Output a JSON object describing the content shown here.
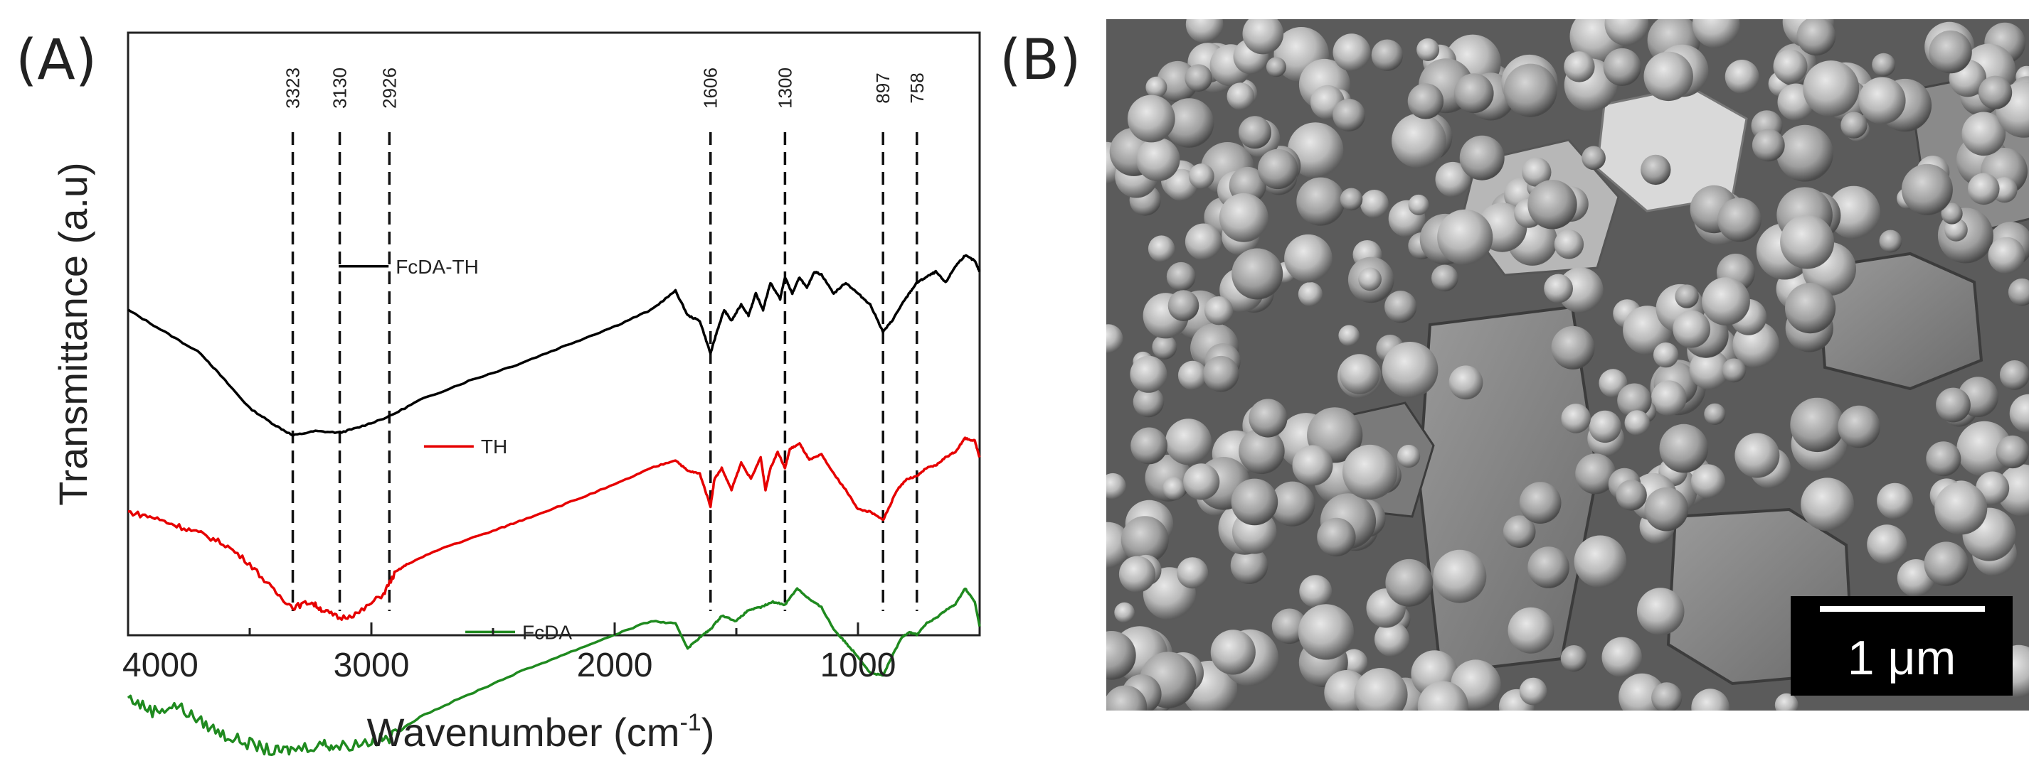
{
  "panels": {
    "a_label": "(A)",
    "b_label": "(B)"
  },
  "chart_data": {
    "type": "line",
    "xlabel": "Wavenumber (cm-1)",
    "xlabel_main": "Wavenumber (cm",
    "xlabel_sup": "-1",
    "xlabel_tail": ")",
    "ylabel": "Transmittance (a.u)",
    "xlim": [
      4000,
      500
    ],
    "x_ticks": [
      4000,
      3000,
      2000,
      1000
    ],
    "x_tick_labels": [
      "4000",
      "3000",
      "2000",
      "1000"
    ],
    "reversed_x": true,
    "y_units": "arbitrary",
    "ylim": [
      0,
      100
    ],
    "grid": false,
    "legend": "inline labels",
    "reference_lines": [
      {
        "x": 3323,
        "label": "3323"
      },
      {
        "x": 3130,
        "label": "3130"
      },
      {
        "x": 2926,
        "label": "2926"
      },
      {
        "x": 1606,
        "label": "1606"
      },
      {
        "x": 1300,
        "label": "1300"
      },
      {
        "x": 897,
        "label": "897"
      },
      {
        "x": 758,
        "label": "758"
      }
    ],
    "series": [
      {
        "name": "FcDA-TH",
        "color": "#000000",
        "label_x": 2900,
        "label_y": 93,
        "points": [
          [
            4000,
            85
          ],
          [
            3850,
            81
          ],
          [
            3700,
            77
          ],
          [
            3600,
            72
          ],
          [
            3500,
            67
          ],
          [
            3400,
            64
          ],
          [
            3323,
            62
          ],
          [
            3230,
            62.8
          ],
          [
            3130,
            62.5
          ],
          [
            3050,
            63.5
          ],
          [
            2926,
            65.5
          ],
          [
            2800,
            68.5
          ],
          [
            2600,
            72
          ],
          [
            2400,
            75
          ],
          [
            2200,
            78.5
          ],
          [
            2000,
            82
          ],
          [
            1850,
            85
          ],
          [
            1750,
            88.5
          ],
          [
            1700,
            84
          ],
          [
            1650,
            83
          ],
          [
            1606,
            77
          ],
          [
            1580,
            81
          ],
          [
            1550,
            85
          ],
          [
            1520,
            83
          ],
          [
            1480,
            86
          ],
          [
            1450,
            84
          ],
          [
            1420,
            88
          ],
          [
            1390,
            85
          ],
          [
            1360,
            90
          ],
          [
            1320,
            87
          ],
          [
            1300,
            91
          ],
          [
            1270,
            88
          ],
          [
            1240,
            91
          ],
          [
            1210,
            89
          ],
          [
            1180,
            92
          ],
          [
            1150,
            91.5
          ],
          [
            1100,
            88
          ],
          [
            1050,
            90
          ],
          [
            1000,
            88
          ],
          [
            950,
            86
          ],
          [
            897,
            81
          ],
          [
            860,
            83
          ],
          [
            820,
            86
          ],
          [
            790,
            88
          ],
          [
            758,
            90
          ],
          [
            720,
            91
          ],
          [
            680,
            92
          ],
          [
            640,
            90
          ],
          [
            600,
            93
          ],
          [
            560,
            95
          ],
          [
            520,
            94
          ],
          [
            500,
            92
          ]
        ]
      },
      {
        "name": "TH",
        "color": "#e60000",
        "label_x": 2550,
        "label_y": 60,
        "points": [
          [
            4000,
            48
          ],
          [
            3900,
            47
          ],
          [
            3800,
            45.5
          ],
          [
            3700,
            44
          ],
          [
            3600,
            42
          ],
          [
            3500,
            38.5
          ],
          [
            3400,
            33.5
          ],
          [
            3323,
            30.5
          ],
          [
            3250,
            31.5
          ],
          [
            3200,
            30
          ],
          [
            3130,
            28.5
          ],
          [
            3050,
            29.5
          ],
          [
            2950,
            33
          ],
          [
            2900,
            37
          ],
          [
            2850,
            38.5
          ],
          [
            2700,
            41.5
          ],
          [
            2500,
            44.5
          ],
          [
            2380,
            46.5
          ],
          [
            2200,
            49.5
          ],
          [
            2000,
            53
          ],
          [
            1850,
            56
          ],
          [
            1750,
            57.5
          ],
          [
            1700,
            55.5
          ],
          [
            1650,
            55
          ],
          [
            1606,
            49
          ],
          [
            1590,
            54
          ],
          [
            1560,
            56
          ],
          [
            1520,
            52
          ],
          [
            1480,
            57
          ],
          [
            1440,
            54
          ],
          [
            1400,
            58
          ],
          [
            1380,
            52
          ],
          [
            1360,
            56
          ],
          [
            1330,
            59
          ],
          [
            1300,
            56
          ],
          [
            1280,
            59.5
          ],
          [
            1240,
            60.5
          ],
          [
            1200,
            57.5
          ],
          [
            1150,
            58.5
          ],
          [
            1100,
            55
          ],
          [
            1050,
            52
          ],
          [
            1000,
            48.5
          ],
          [
            950,
            48
          ],
          [
            897,
            46.5
          ],
          [
            870,
            49
          ],
          [
            840,
            52
          ],
          [
            800,
            54
          ],
          [
            758,
            54.5
          ],
          [
            720,
            56
          ],
          [
            680,
            56.5
          ],
          [
            640,
            58
          ],
          [
            600,
            59
          ],
          [
            560,
            61.5
          ],
          [
            520,
            61
          ],
          [
            500,
            58
          ]
        ]
      },
      {
        "name": "FcDA",
        "color": "#1f8a1f",
        "label_x": 2380,
        "label_y": 26,
        "points": [
          [
            4000,
            14
          ],
          [
            3900,
            11.5
          ],
          [
            3800,
            12.5
          ],
          [
            3700,
            9.5
          ],
          [
            3600,
            7
          ],
          [
            3500,
            5.5
          ],
          [
            3400,
            4
          ],
          [
            3323,
            4.5
          ],
          [
            3200,
            5.5
          ],
          [
            3130,
            5
          ],
          [
            3000,
            6
          ],
          [
            2926,
            6.5
          ],
          [
            2800,
            10.5
          ],
          [
            2600,
            14.5
          ],
          [
            2400,
            18.5
          ],
          [
            2200,
            22
          ],
          [
            2000,
            25.5
          ],
          [
            1850,
            28
          ],
          [
            1750,
            27.5
          ],
          [
            1700,
            23
          ],
          [
            1650,
            25
          ],
          [
            1606,
            26.5
          ],
          [
            1560,
            29
          ],
          [
            1500,
            28
          ],
          [
            1450,
            30
          ],
          [
            1400,
            30.5
          ],
          [
            1350,
            31.5
          ],
          [
            1300,
            31
          ],
          [
            1250,
            34
          ],
          [
            1200,
            32
          ],
          [
            1150,
            30.5
          ],
          [
            1100,
            26.5
          ],
          [
            1050,
            24
          ],
          [
            1000,
            21.5
          ],
          [
            950,
            18.5
          ],
          [
            897,
            18
          ],
          [
            860,
            21.5
          ],
          [
            820,
            25
          ],
          [
            790,
            26
          ],
          [
            758,
            25.5
          ],
          [
            720,
            27.5
          ],
          [
            680,
            28.5
          ],
          [
            640,
            30
          ],
          [
            600,
            31
          ],
          [
            560,
            34
          ],
          [
            520,
            31.5
          ],
          [
            500,
            27
          ]
        ]
      }
    ]
  },
  "micrograph": {
    "scale_bar_label": "1 μm"
  }
}
